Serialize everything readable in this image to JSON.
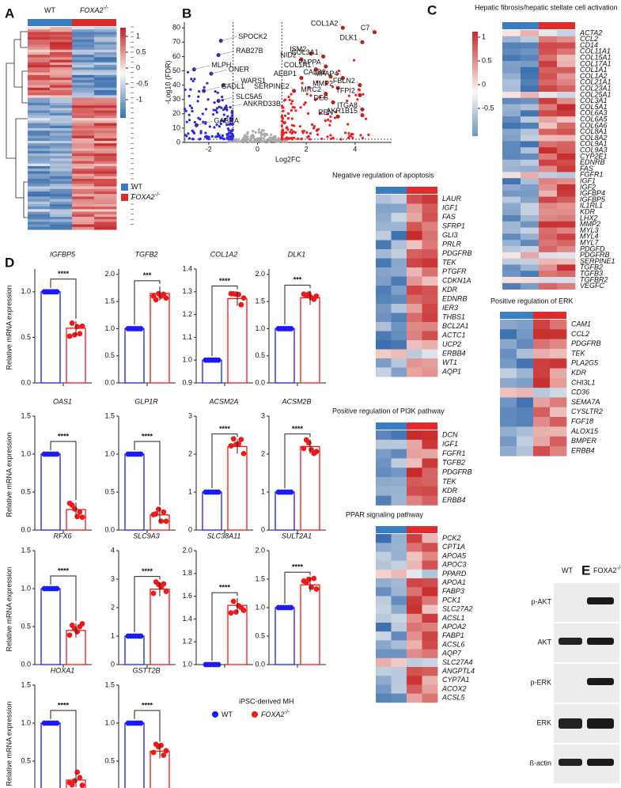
{
  "panel_labels": [
    "A",
    "B",
    "C",
    "D",
    "E"
  ],
  "heatmap_a": {
    "colorbar_ticks": [
      1,
      0.5,
      0,
      -0.5,
      -1
    ],
    "columns": [
      {
        "label": "WT"
      },
      {
        "label": "FOXA2",
        "superscript": "-/-"
      }
    ],
    "legend": [
      {
        "label": "WT",
        "color": "#3b7dc4"
      },
      {
        "label": "FOXA2",
        "superscript": "-/-",
        "color": "#e02b2b"
      }
    ]
  },
  "volcano": {
    "x_label": "Log2FC",
    "y_label": "-Log10 (FDR)",
    "xlim": [
      -3,
      5.5
    ],
    "ylim": [
      0,
      84
    ],
    "xticks": [
      -2,
      0,
      2,
      4
    ],
    "yticks": [
      0,
      10,
      20,
      30,
      40,
      50,
      60,
      70,
      80
    ],
    "genes": [
      {
        "label": "COL1A2",
        "x": 3.5,
        "y": 80
      },
      {
        "label": "C7",
        "x": 4.8,
        "y": 77
      },
      {
        "label": "DLK1",
        "x": 4.3,
        "y": 70
      },
      {
        "label": "ISM2",
        "x": 2.2,
        "y": 62
      },
      {
        "label": "NID2",
        "x": 1.8,
        "y": 58
      },
      {
        "label": "COL3A1",
        "x": 2.7,
        "y": 60
      },
      {
        "label": "PAPPA",
        "x": 2.8,
        "y": 53
      },
      {
        "label": "COL1A1",
        "x": 2.4,
        "y": 51
      },
      {
        "label": "CALB2",
        "x": 3.0,
        "y": 46
      },
      {
        "label": "MFAP4",
        "x": 3.5,
        "y": 45
      },
      {
        "label": "AEBP1",
        "x": 1.8,
        "y": 45
      },
      {
        "label": "FBLN2",
        "x": 4.2,
        "y": 40
      },
      {
        "label": "MMP2",
        "x": 3.3,
        "y": 38
      },
      {
        "label": "SERPINE2",
        "x": 1.5,
        "y": 36
      },
      {
        "label": "MRC2",
        "x": 2.8,
        "y": 34
      },
      {
        "label": "TFPI2",
        "x": 4.2,
        "y": 33
      },
      {
        "label": "DES",
        "x": 3.1,
        "y": 28
      },
      {
        "label": "ITGA8",
        "x": 4.3,
        "y": 23
      },
      {
        "label": "REN",
        "x": 3.3,
        "y": 18
      },
      {
        "label": "AKR1B15",
        "x": 4.3,
        "y": 19
      },
      {
        "label": "SPOCK2",
        "x": -1.5,
        "y": 71
      },
      {
        "label": "RAB27B",
        "x": -1.6,
        "y": 61
      },
      {
        "label": "MLPH",
        "x": -2.6,
        "y": 51
      },
      {
        "label": "ONER",
        "x": -1.9,
        "y": 48
      },
      {
        "label": "WARS1",
        "x": -1.4,
        "y": 40
      },
      {
        "label": "GADL1",
        "x": -2.2,
        "y": 36
      },
      {
        "label": "SLC5A5",
        "x": -1.6,
        "y": 29
      },
      {
        "label": "ANKRD33B",
        "x": -1.3,
        "y": 24
      },
      {
        "label": "GABRA",
        "x": -2.5,
        "y": 12
      }
    ]
  },
  "heatmap_c": {
    "colorbar_ticks": [
      1,
      0.5,
      0,
      -0.5
    ],
    "sets": [
      {
        "title": "Hepatic fibrosis/hepatic stellate cell activation",
        "genes": [
          "ACTA2",
          "CCL2",
          "CD14",
          "COL11A1",
          "COL15A1",
          "COL17A1",
          "COL1A1",
          "COL1A2",
          "COL21A1",
          "COL23A1",
          "COL25A1",
          "COL3A1",
          "COL5A1",
          "COL6A3",
          "COL6A5",
          "COL6A6",
          "COL8A1",
          "COL8A2",
          "COL9A1",
          "COL9A3",
          "CYP2E1",
          "EDNRB",
          "FAS",
          "FGFR1",
          "IGF1",
          "IGF2",
          "IGFBP4",
          "IGFBP5",
          "IL1RL1",
          "KDR",
          "LHX2",
          "MMP2",
          "MYL3",
          "MYL4",
          "MYL7",
          "PDGFD",
          "PDGFRB",
          "SERPINE1",
          "TGFB2",
          "TGFB3",
          "TGFBR2",
          "VEGFC"
        ]
      },
      {
        "title": "Negative regulation of apoptosis",
        "genes": [
          "LAUR",
          "IGF1",
          "FAS",
          "SFRP1",
          "GLI3",
          "PRLR",
          "PDGFRB",
          "TEK",
          "PTGFR",
          "CDKN1A",
          "KDR",
          "EDNRB",
          "IER3",
          "THBS1",
          "BCL2A1",
          "ACTC1",
          "UCP2",
          "ERBB4",
          "WT1",
          "AQP1"
        ]
      },
      {
        "title": "Positive regulation of PI3K pathway",
        "genes": [
          "DCN",
          "IGF1",
          "FGFR1",
          "TGFB2",
          "PDGFRB",
          "TEK",
          "KDR",
          "ERBB4"
        ]
      },
      {
        "title": "PPAR signaling pathway",
        "genes": [
          "PCK2",
          "CPT1A",
          "APOA5",
          "APOC3",
          "PPARD",
          "APOA1",
          "FABP3",
          "PCK1",
          "SLC27A2",
          "ACSL1",
          "APOA2",
          "FABP1",
          "ACSL6",
          "AQP7",
          "SLC27A4",
          "ANGPTL4",
          "CYP7A1",
          "ACOX2",
          "ACSL5"
        ]
      },
      {
        "title": "Positive regulation of ERK",
        "genes": [
          "CAM1",
          "CCL2",
          "PDGFRB",
          "TEK",
          "PLA2G5",
          "KDR",
          "CHI3L1",
          "CD36",
          "SEMA7A",
          "CYSLTR2",
          "FGF18",
          "ALOX15",
          "BMPER",
          "ERBB4"
        ]
      }
    ]
  },
  "qpcr": {
    "y_label": "Relative mRNA expression",
    "legend_title": "iPSC-derived MH",
    "groups": [
      {
        "label": "WT",
        "color": "#1a1aff"
      },
      {
        "label": "FOXA2",
        "superscript": "-/-",
        "color": "#f01818"
      }
    ],
    "charts": [
      {
        "gene": "IGFBP5",
        "ylim": [
          0,
          1.25
        ],
        "yticks": [
          {
            "value": 0,
            "label": "0.0"
          },
          {
            "value": 0.5,
            "label": "0.5"
          },
          {
            "value": 1,
            "label": "1.0"
          }
        ],
        "values": [
          1.0,
          0.6
        ],
        "sig": "****"
      },
      {
        "gene": "TGFB2",
        "ylim": [
          0,
          2.1
        ],
        "yticks": [
          {
            "value": 0,
            "label": "0.0"
          },
          {
            "value": 0.5,
            "label": "0.5"
          },
          {
            "value": 1,
            "label": "1.0"
          },
          {
            "value": 1.5,
            "label": "1.5"
          },
          {
            "value": 2,
            "label": "2.0"
          }
        ],
        "values": [
          1.0,
          1.65
        ],
        "sig": "***"
      },
      {
        "gene": "COL1A2",
        "ylim": [
          0.9,
          1.4
        ],
        "yticks": [
          {
            "value": 0.9,
            "label": "0.9"
          },
          {
            "value": 1,
            "label": "1.0"
          },
          {
            "value": 1.1,
            "label": "1.1"
          },
          {
            "value": 1.2,
            "label": "1.2"
          },
          {
            "value": 1.3,
            "label": "1.3"
          },
          {
            "value": 1.4,
            "label": "1.4"
          }
        ],
        "values": [
          1.0,
          1.27
        ],
        "sig": "****"
      },
      {
        "gene": "DLK1",
        "ylim": [
          0,
          2.1
        ],
        "yticks": [
          {
            "value": 0,
            "label": "0.0"
          },
          {
            "value": 0.5,
            "label": "0.5"
          },
          {
            "value": 1,
            "label": "1.0"
          },
          {
            "value": 1.5,
            "label": "1.5"
          },
          {
            "value": 2,
            "label": "2.0"
          }
        ],
        "values": [
          1.0,
          1.57
        ],
        "sig": "***"
      },
      {
        "gene": "OAS1",
        "ylim": [
          0,
          1.5
        ],
        "yticks": [
          {
            "value": 0,
            "label": "0.0"
          },
          {
            "value": 0.5,
            "label": "0.5"
          },
          {
            "value": 1,
            "label": "1.0"
          },
          {
            "value": 1.5,
            "label": "1.5"
          }
        ],
        "values": [
          1.0,
          0.27
        ],
        "sig": "****"
      },
      {
        "gene": "GLP1R",
        "ylim": [
          0,
          1.5
        ],
        "yticks": [
          {
            "value": 0,
            "label": "0.0"
          },
          {
            "value": 0.5,
            "label": "0.5"
          },
          {
            "value": 1,
            "label": "1.0"
          },
          {
            "value": 1.5,
            "label": "1.5"
          }
        ],
        "values": [
          1.0,
          0.2
        ],
        "sig": "****"
      },
      {
        "gene": "ACSM2A",
        "ylim": [
          0,
          3
        ],
        "yticks": [
          0,
          1,
          2,
          3
        ],
        "values": [
          1.0,
          2.2
        ],
        "sig": "****"
      },
      {
        "gene": "ACSM2B",
        "ylim": [
          0,
          3
        ],
        "yticks": [
          0,
          1,
          2,
          3
        ],
        "values": [
          1.0,
          2.2
        ],
        "sig": "****"
      },
      {
        "gene": "RFX6",
        "ylim": [
          0,
          1.5
        ],
        "yticks": [
          {
            "value": 0,
            "label": "0.0"
          },
          {
            "value": 0.5,
            "label": "0.5"
          },
          {
            "value": 1,
            "label": "1.0"
          },
          {
            "value": 1.5,
            "label": "1.5"
          }
        ],
        "values": [
          1.0,
          0.45
        ],
        "sig": "****"
      },
      {
        "gene": "SLC9A3",
        "ylim": [
          0,
          4
        ],
        "yticks": [
          0,
          1,
          2,
          3,
          4
        ],
        "values": [
          1.0,
          2.65
        ],
        "sig": "****"
      },
      {
        "gene": "SLC38A11",
        "ylim": [
          1,
          2
        ],
        "yticks": [
          {
            "value": 1,
            "label": "1.0"
          },
          {
            "value": 1.2,
            "label": "1.2"
          },
          {
            "value": 1.4,
            "label": "1.4"
          },
          {
            "value": 1.6,
            "label": "1.6"
          },
          {
            "value": 1.8,
            "label": "1.8"
          },
          {
            "value": 2,
            "label": "2.0"
          }
        ],
        "values": [
          1.0,
          1.52
        ],
        "sig": "****"
      },
      {
        "gene": "SULT2A1",
        "ylim": [
          0,
          2
        ],
        "yticks": [
          {
            "value": 0,
            "label": "0.0"
          },
          {
            "value": 0.5,
            "label": "0.5"
          },
          {
            "value": 1,
            "label": "1.0"
          },
          {
            "value": 1.5,
            "label": "1.5"
          },
          {
            "value": 2,
            "label": "2.0"
          }
        ],
        "values": [
          1.0,
          1.4
        ],
        "sig": "****"
      },
      {
        "gene": "HOXA1",
        "ylim": [
          0,
          1.5
        ],
        "yticks": [
          {
            "value": 0,
            "label": "0.0"
          },
          {
            "value": 0.5,
            "label": "0.5"
          },
          {
            "value": 1,
            "label": "1.0"
          },
          {
            "value": 1.5,
            "label": "1.5"
          }
        ],
        "values": [
          1.0,
          0.25
        ],
        "sig": "****"
      },
      {
        "gene": "GSTT2B",
        "ylim": [
          0,
          1.5
        ],
        "yticks": [
          {
            "value": 0,
            "label": "0.0"
          },
          {
            "value": 0.5,
            "label": "0.5"
          },
          {
            "value": 1,
            "label": "1.0"
          },
          {
            "value": 1.5,
            "label": "1.5"
          }
        ],
        "values": [
          1.0,
          0.63
        ],
        "sig": "****"
      }
    ]
  },
  "western": {
    "columns": [
      {
        "label": "WT"
      },
      {
        "label": "FOXA2",
        "superscript": "-/-"
      }
    ],
    "rows": [
      "p-AKT",
      "AKT",
      "p-ERK",
      "ERK",
      "ß-actin"
    ]
  }
}
